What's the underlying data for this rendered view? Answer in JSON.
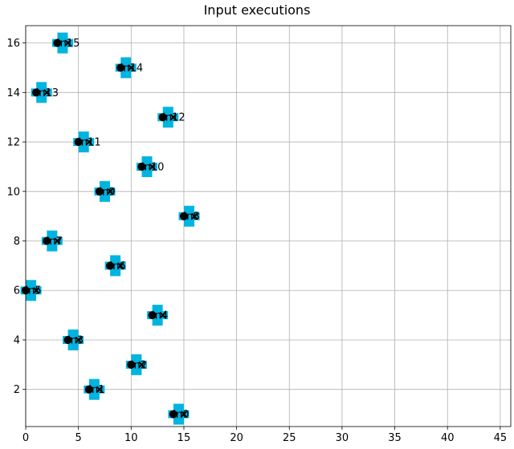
{
  "chart_data": {
    "type": "scatter",
    "title": "Input executions",
    "xlabel": "",
    "ylabel": "",
    "xlim": [
      0,
      46
    ],
    "ylim": [
      0.5,
      16.7
    ],
    "xticks": [
      0,
      5,
      10,
      15,
      20,
      25,
      30,
      35,
      40,
      45
    ],
    "yticks": [
      2,
      4,
      6,
      8,
      10,
      12,
      14,
      16
    ],
    "grid": true,
    "colors": {
      "square_marker": "#00b4e0",
      "dot_marker": "#000000",
      "x_marker": "#000000"
    },
    "series": [
      {
        "marker": "square",
        "points": [
          {
            "x": 14.5,
            "y": 1
          },
          {
            "x": 6.5,
            "y": 2
          },
          {
            "x": 10.5,
            "y": 3
          },
          {
            "x": 4.5,
            "y": 4
          },
          {
            "x": 12.5,
            "y": 5
          },
          {
            "x": 0.5,
            "y": 6
          },
          {
            "x": 8.5,
            "y": 7
          },
          {
            "x": 2.5,
            "y": 8
          },
          {
            "x": 15.5,
            "y": 9
          },
          {
            "x": 7.5,
            "y": 10
          },
          {
            "x": 11.5,
            "y": 11
          },
          {
            "x": 5.5,
            "y": 12
          },
          {
            "x": 13.5,
            "y": 13
          },
          {
            "x": 1.5,
            "y": 14
          },
          {
            "x": 9.5,
            "y": 15
          },
          {
            "x": 3.5,
            "y": 16
          }
        ]
      },
      {
        "marker": "dot",
        "points": [
          {
            "x": 14,
            "y": 1
          },
          {
            "x": 6,
            "y": 2
          },
          {
            "x": 10,
            "y": 3
          },
          {
            "x": 4,
            "y": 4
          },
          {
            "x": 12,
            "y": 5
          },
          {
            "x": 0,
            "y": 6
          },
          {
            "x": 8,
            "y": 7
          },
          {
            "x": 2,
            "y": 8
          },
          {
            "x": 15,
            "y": 9
          },
          {
            "x": 7,
            "y": 10
          },
          {
            "x": 11,
            "y": 11
          },
          {
            "x": 5,
            "y": 12
          },
          {
            "x": 13,
            "y": 13
          },
          {
            "x": 1,
            "y": 14
          },
          {
            "x": 9,
            "y": 15
          },
          {
            "x": 3,
            "y": 16
          }
        ]
      },
      {
        "marker": "x",
        "points": [
          {
            "x": 15,
            "y": 1
          },
          {
            "x": 7,
            "y": 2
          },
          {
            "x": 11,
            "y": 3
          },
          {
            "x": 5,
            "y": 4
          },
          {
            "x": 13,
            "y": 5
          },
          {
            "x": 1,
            "y": 6
          },
          {
            "x": 9,
            "y": 7
          },
          {
            "x": 3,
            "y": 8
          },
          {
            "x": 16,
            "y": 9
          },
          {
            "x": 8,
            "y": 10
          },
          {
            "x": 12,
            "y": 11
          },
          {
            "x": 6,
            "y": 12
          },
          {
            "x": 14,
            "y": 13
          },
          {
            "x": 2,
            "y": 14
          },
          {
            "x": 10,
            "y": 15
          },
          {
            "x": 4,
            "y": 16
          }
        ]
      }
    ],
    "annotations": [
      {
        "text": "in0",
        "x": 14.5,
        "y": 1
      },
      {
        "text": "in1",
        "x": 6.5,
        "y": 2
      },
      {
        "text": "in2",
        "x": 10.5,
        "y": 3
      },
      {
        "text": "in3",
        "x": 4.5,
        "y": 4
      },
      {
        "text": "in4",
        "x": 12.5,
        "y": 5
      },
      {
        "text": "in5",
        "x": 0.5,
        "y": 6
      },
      {
        "text": "in6",
        "x": 8.5,
        "y": 7
      },
      {
        "text": "in7",
        "x": 2.5,
        "y": 8
      },
      {
        "text": "in8",
        "x": 15.5,
        "y": 9
      },
      {
        "text": "in9",
        "x": 7.5,
        "y": 10
      },
      {
        "text": "in10",
        "x": 11.5,
        "y": 11
      },
      {
        "text": "in11",
        "x": 5.5,
        "y": 12
      },
      {
        "text": "in12",
        "x": 13.5,
        "y": 13
      },
      {
        "text": "in13",
        "x": 1.5,
        "y": 14
      },
      {
        "text": "in14",
        "x": 9.5,
        "y": 15
      },
      {
        "text": "in15",
        "x": 3.5,
        "y": 16
      }
    ]
  }
}
